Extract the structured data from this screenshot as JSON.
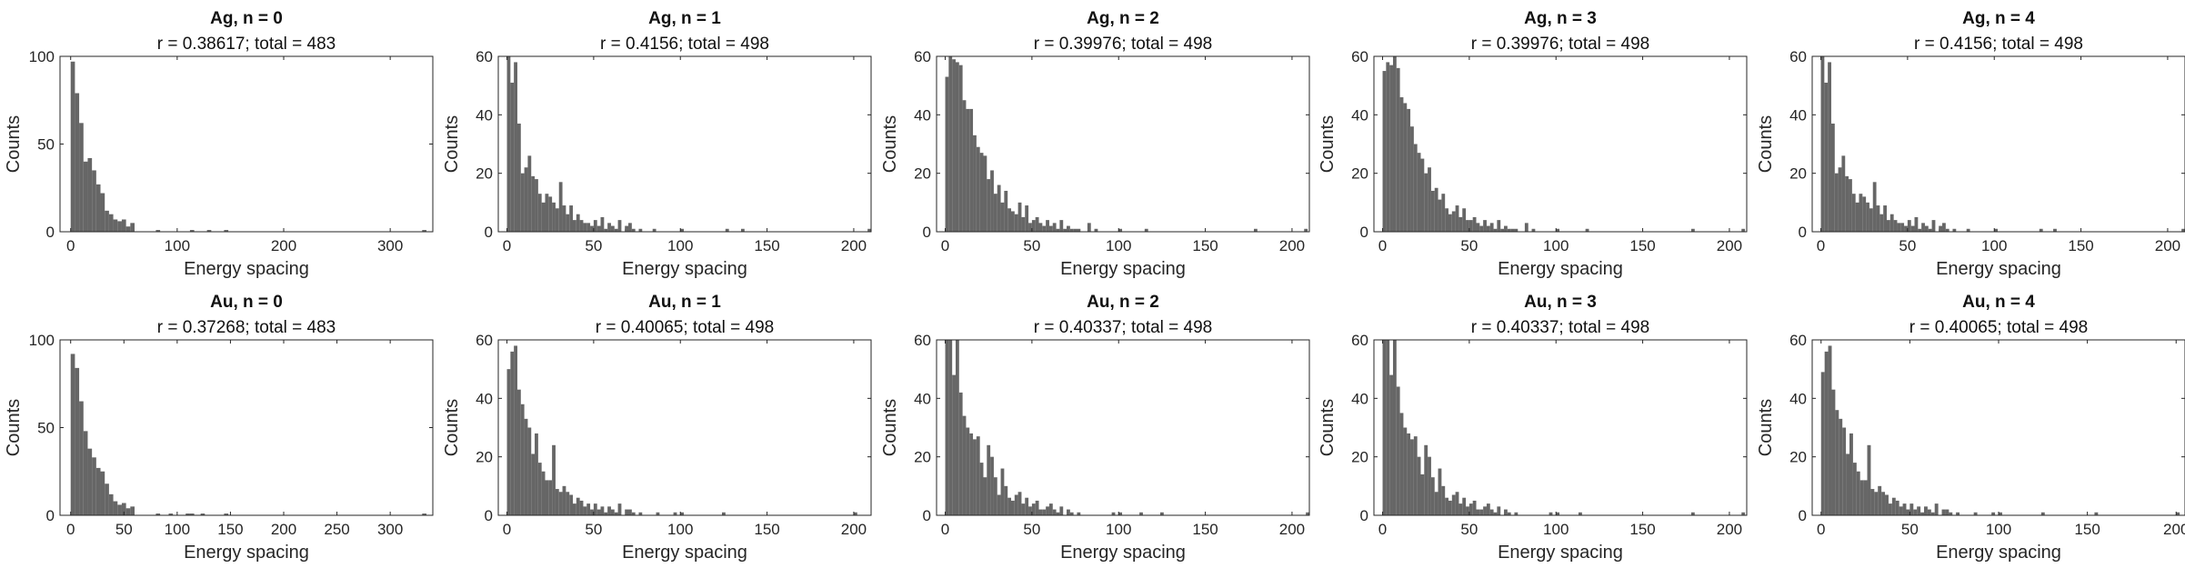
{
  "figure": {
    "background": "#ffffff",
    "bar_color": "#666666",
    "axis_color": "#262626"
  },
  "chart_data": [
    {
      "type": "bar",
      "title": "Ag, n = 0",
      "subtitle": "r = 0.38617; total = 483",
      "xlabel": "Energy spacing",
      "ylabel": "Counts",
      "xlim": [
        -10,
        340
      ],
      "ylim": [
        0,
        100
      ],
      "xticks": [
        0,
        100,
        200,
        300
      ],
      "yticks": [
        0,
        50,
        100
      ],
      "bin_width": 4,
      "bin_start": 0,
      "counts": [
        97,
        79,
        62,
        40,
        42,
        35,
        27,
        22,
        12,
        10,
        7,
        6,
        7,
        3,
        5,
        0,
        0,
        0,
        0,
        0,
        0,
        0,
        0,
        0,
        0,
        0,
        0,
        0,
        1,
        0,
        0,
        0,
        0,
        0,
        0,
        0,
        1
      ],
      "outliers": [
        [
          80,
          1
        ],
        [
          128,
          1
        ],
        [
          330,
          1
        ]
      ]
    },
    {
      "type": "bar",
      "title": "Ag, n = 1",
      "subtitle": "r = 0.4156; total = 498",
      "xlabel": "Energy spacing",
      "ylabel": "Counts",
      "xlim": [
        -5,
        210
      ],
      "ylim": [
        0,
        60
      ],
      "xticks": [
        0,
        50,
        100,
        150,
        200
      ],
      "yticks": [
        0,
        20,
        40,
        60
      ],
      "bin_width": 2,
      "bin_start": 0,
      "counts": [
        62,
        51,
        58,
        37,
        20,
        22,
        26,
        19,
        18,
        13,
        10,
        13,
        12,
        10,
        8,
        17,
        9,
        6,
        9,
        4,
        6,
        4,
        3,
        3,
        2,
        4,
        2,
        5,
        1,
        3,
        2,
        1,
        4,
        0,
        2,
        3,
        1,
        0,
        1,
        0,
        0,
        0,
        1
      ],
      "outliers": [
        [
          68,
          1
        ],
        [
          100,
          1
        ],
        [
          126,
          1
        ],
        [
          135,
          1
        ],
        [
          208,
          1
        ]
      ]
    },
    {
      "type": "bar",
      "title": "Ag, n = 2",
      "subtitle": "r = 0.39976; total = 498",
      "xlabel": "Energy spacing",
      "ylabel": "Counts",
      "xlim": [
        -5,
        210
      ],
      "ylim": [
        0,
        60
      ],
      "xticks": [
        0,
        50,
        100,
        150,
        200
      ],
      "yticks": [
        0,
        20,
        40,
        60
      ],
      "bin_width": 2,
      "bin_start": 0,
      "counts": [
        53,
        60,
        59,
        58,
        57,
        45,
        42,
        42,
        33,
        29,
        27,
        26,
        18,
        21,
        13,
        16,
        10,
        14,
        8,
        7,
        6,
        10,
        5,
        9,
        3,
        4,
        5,
        3,
        2,
        4,
        2,
        3,
        1,
        4,
        1,
        2,
        1,
        1,
        1,
        0,
        0,
        3
      ],
      "outliers": [
        [
          86,
          1
        ],
        [
          100,
          1
        ],
        [
          115,
          1
        ],
        [
          178,
          1
        ],
        [
          207,
          1
        ]
      ]
    },
    {
      "type": "bar",
      "title": "Ag, n = 3",
      "subtitle": "r = 0.39976; total = 498",
      "xlabel": "Energy spacing",
      "ylabel": "Counts",
      "xlim": [
        -5,
        210
      ],
      "ylim": [
        0,
        60
      ],
      "xticks": [
        0,
        50,
        100,
        150,
        200
      ],
      "yticks": [
        0,
        20,
        40,
        60
      ],
      "bin_width": 2,
      "bin_start": 0,
      "counts": [
        55,
        58,
        57,
        60,
        56,
        46,
        44,
        42,
        36,
        30,
        27,
        25,
        20,
        22,
        14,
        15,
        11,
        13,
        8,
        6,
        7,
        9,
        5,
        8,
        4,
        4,
        5,
        3,
        2,
        4,
        2,
        3,
        1,
        4,
        1,
        2,
        1,
        1,
        1,
        0,
        0,
        3
      ],
      "outliers": [
        [
          86,
          1
        ],
        [
          100,
          1
        ],
        [
          117,
          1
        ],
        [
          178,
          1
        ],
        [
          207,
          1
        ]
      ]
    },
    {
      "type": "bar",
      "title": "Ag, n = 4",
      "subtitle": "r = 0.4156; total = 498",
      "xlabel": "Energy spacing",
      "ylabel": "Counts",
      "xlim": [
        -5,
        210
      ],
      "ylim": [
        0,
        60
      ],
      "xticks": [
        0,
        50,
        100,
        150,
        200
      ],
      "yticks": [
        0,
        20,
        40,
        60
      ],
      "bin_width": 2,
      "bin_start": 0,
      "counts": [
        60,
        51,
        58,
        37,
        20,
        22,
        26,
        19,
        18,
        13,
        10,
        13,
        12,
        10,
        8,
        17,
        9,
        6,
        9,
        4,
        6,
        4,
        3,
        3,
        2,
        4,
        2,
        5,
        1,
        3,
        2,
        1,
        4,
        0,
        2,
        3,
        1,
        0,
        1,
        0,
        0,
        0,
        1
      ],
      "outliers": [
        [
          68,
          1
        ],
        [
          100,
          1
        ],
        [
          126,
          1
        ],
        [
          134,
          1
        ],
        [
          208,
          1
        ]
      ]
    },
    {
      "type": "bar",
      "title": "Au, n = 0",
      "subtitle": "r = 0.37268; total = 483",
      "xlabel": "Energy spacing",
      "ylabel": "Counts",
      "xlim": [
        -10,
        340
      ],
      "ylim": [
        0,
        100
      ],
      "xticks": [
        0,
        50,
        100,
        150,
        200,
        250,
        300
      ],
      "yticks": [
        0,
        50,
        100
      ],
      "bin_width": 4,
      "bin_start": 0,
      "counts": [
        92,
        84,
        65,
        48,
        38,
        33,
        27,
        25,
        18,
        12,
        8,
        6,
        7,
        4,
        5,
        0,
        0,
        0,
        0,
        0,
        0,
        0,
        0,
        0,
        0,
        0,
        0,
        0,
        1,
        0,
        0,
        0,
        0,
        0,
        0,
        0,
        1
      ],
      "outliers": [
        [
          80,
          1
        ],
        [
          92,
          1
        ],
        [
          108,
          1
        ],
        [
          122,
          1
        ],
        [
          330,
          1
        ]
      ]
    },
    {
      "type": "bar",
      "title": "Au, n = 1",
      "subtitle": "r = 0.40065; total = 498",
      "xlabel": "Energy spacing",
      "ylabel": "Counts",
      "xlim": [
        -5,
        210
      ],
      "ylim": [
        0,
        60
      ],
      "xticks": [
        0,
        50,
        100,
        150,
        200
      ],
      "yticks": [
        0,
        20,
        40,
        60
      ],
      "bin_width": 2,
      "bin_start": 0,
      "counts": [
        50,
        56,
        58,
        43,
        38,
        33,
        30,
        21,
        28,
        18,
        15,
        12,
        12,
        24,
        9,
        8,
        10,
        8,
        7,
        4,
        6,
        5,
        3,
        4,
        2,
        4,
        2,
        3,
        1,
        3,
        2,
        1,
        4,
        0,
        2,
        2,
        1,
        0,
        1
      ],
      "outliers": [
        [
          86,
          1
        ],
        [
          96,
          1
        ],
        [
          100,
          1
        ],
        [
          124,
          1
        ],
        [
          200,
          1
        ]
      ]
    },
    {
      "type": "bar",
      "title": "Au, n = 2",
      "subtitle": "r = 0.40337; total = 498",
      "xlabel": "Energy spacing",
      "ylabel": "Counts",
      "xlim": [
        -5,
        210
      ],
      "ylim": [
        0,
        60
      ],
      "xticks": [
        0,
        50,
        100,
        150,
        200
      ],
      "yticks": [
        0,
        20,
        40,
        60
      ],
      "bin_width": 2,
      "bin_start": 0,
      "counts": [
        61,
        62,
        48,
        62,
        42,
        34,
        30,
        28,
        26,
        27,
        18,
        13,
        24,
        20,
        13,
        7,
        16,
        10,
        6,
        5,
        7,
        8,
        4,
        6,
        3,
        4,
        5,
        2,
        2,
        3,
        4,
        2,
        1,
        3,
        0,
        2,
        1,
        0,
        1
      ],
      "outliers": [
        [
          96,
          1
        ],
        [
          100,
          1
        ],
        [
          112,
          1
        ],
        [
          124,
          1
        ],
        [
          208,
          1
        ]
      ]
    },
    {
      "type": "bar",
      "title": "Au, n = 3",
      "subtitle": "r = 0.40337; total = 498",
      "xlabel": "Energy spacing",
      "ylabel": "Counts",
      "xlim": [
        -5,
        210
      ],
      "ylim": [
        0,
        60
      ],
      "xticks": [
        0,
        50,
        100,
        150,
        200
      ],
      "yticks": [
        0,
        20,
        40,
        60
      ],
      "bin_width": 2,
      "bin_start": 0,
      "counts": [
        60,
        62,
        48,
        61,
        44,
        35,
        30,
        28,
        26,
        27,
        20,
        14,
        24,
        20,
        13,
        8,
        16,
        10,
        6,
        5,
        7,
        8,
        4,
        6,
        3,
        4,
        5,
        2,
        2,
        3,
        4,
        2,
        1,
        3,
        0,
        2,
        1,
        0,
        1
      ],
      "outliers": [
        [
          96,
          1
        ],
        [
          100,
          1
        ],
        [
          113,
          1
        ],
        [
          178,
          1
        ],
        [
          207,
          1
        ]
      ]
    },
    {
      "type": "bar",
      "title": "Au, n = 4",
      "subtitle": "r = 0.40065; total = 498",
      "xlabel": "Energy spacing",
      "ylabel": "Counts",
      "xlim": [
        -5,
        205
      ],
      "ylim": [
        0,
        60
      ],
      "xticks": [
        0,
        50,
        100,
        150,
        200
      ],
      "yticks": [
        0,
        20,
        40,
        60
      ],
      "bin_width": 2,
      "bin_start": 0,
      "counts": [
        49,
        56,
        58,
        43,
        36,
        33,
        30,
        21,
        28,
        18,
        15,
        12,
        12,
        24,
        9,
        8,
        10,
        8,
        7,
        4,
        6,
        5,
        3,
        4,
        2,
        4,
        2,
        3,
        1,
        3,
        2,
        1,
        4,
        0,
        2,
        2,
        1,
        0,
        1
      ],
      "outliers": [
        [
          86,
          1
        ],
        [
          96,
          1
        ],
        [
          100,
          1
        ],
        [
          124,
          1
        ],
        [
          154,
          1
        ],
        [
          200,
          1
        ]
      ]
    }
  ]
}
